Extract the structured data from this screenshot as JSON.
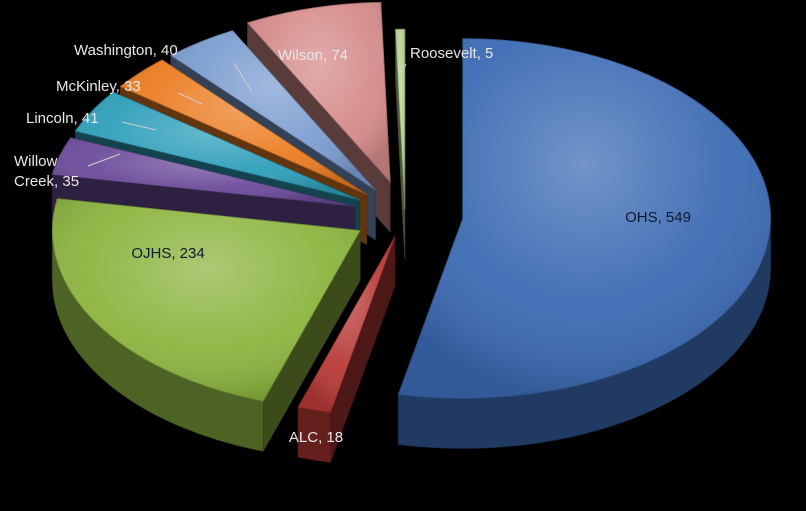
{
  "chart_data": {
    "type": "pie",
    "style": "3d-exploded",
    "legend": "none",
    "slices": [
      {
        "label": "OHS",
        "value": 549,
        "text": "OHS, 549",
        "color": "#3b6ab3"
      },
      {
        "label": "ALC",
        "value": 18,
        "text": "ALC, 18",
        "color": "#b83a37"
      },
      {
        "label": "OJHS",
        "value": 234,
        "text": "OJHS, 234",
        "color": "#8cb43f"
      },
      {
        "label": "Willow Creek",
        "value": 35,
        "text": [
          "Willow",
          "Creek, 35"
        ],
        "color": "#6b4b9a"
      },
      {
        "label": "Lincoln",
        "value": 41,
        "text": "Lincoln, 41",
        "color": "#2e9fba"
      },
      {
        "label": "McKinley",
        "value": 33,
        "text": "McKinley, 33",
        "color": "#ec7d22"
      },
      {
        "label": "Washington",
        "value": 40,
        "text": "Washington, 40",
        "color": "#7c9dd0"
      },
      {
        "label": "Wilson",
        "value": 74,
        "text": "Wilson, 74",
        "color": "#d58c8a"
      },
      {
        "label": "Roosevelt",
        "value": 5,
        "text": "Roosevelt, 5",
        "color": "#b5d08d"
      }
    ]
  }
}
